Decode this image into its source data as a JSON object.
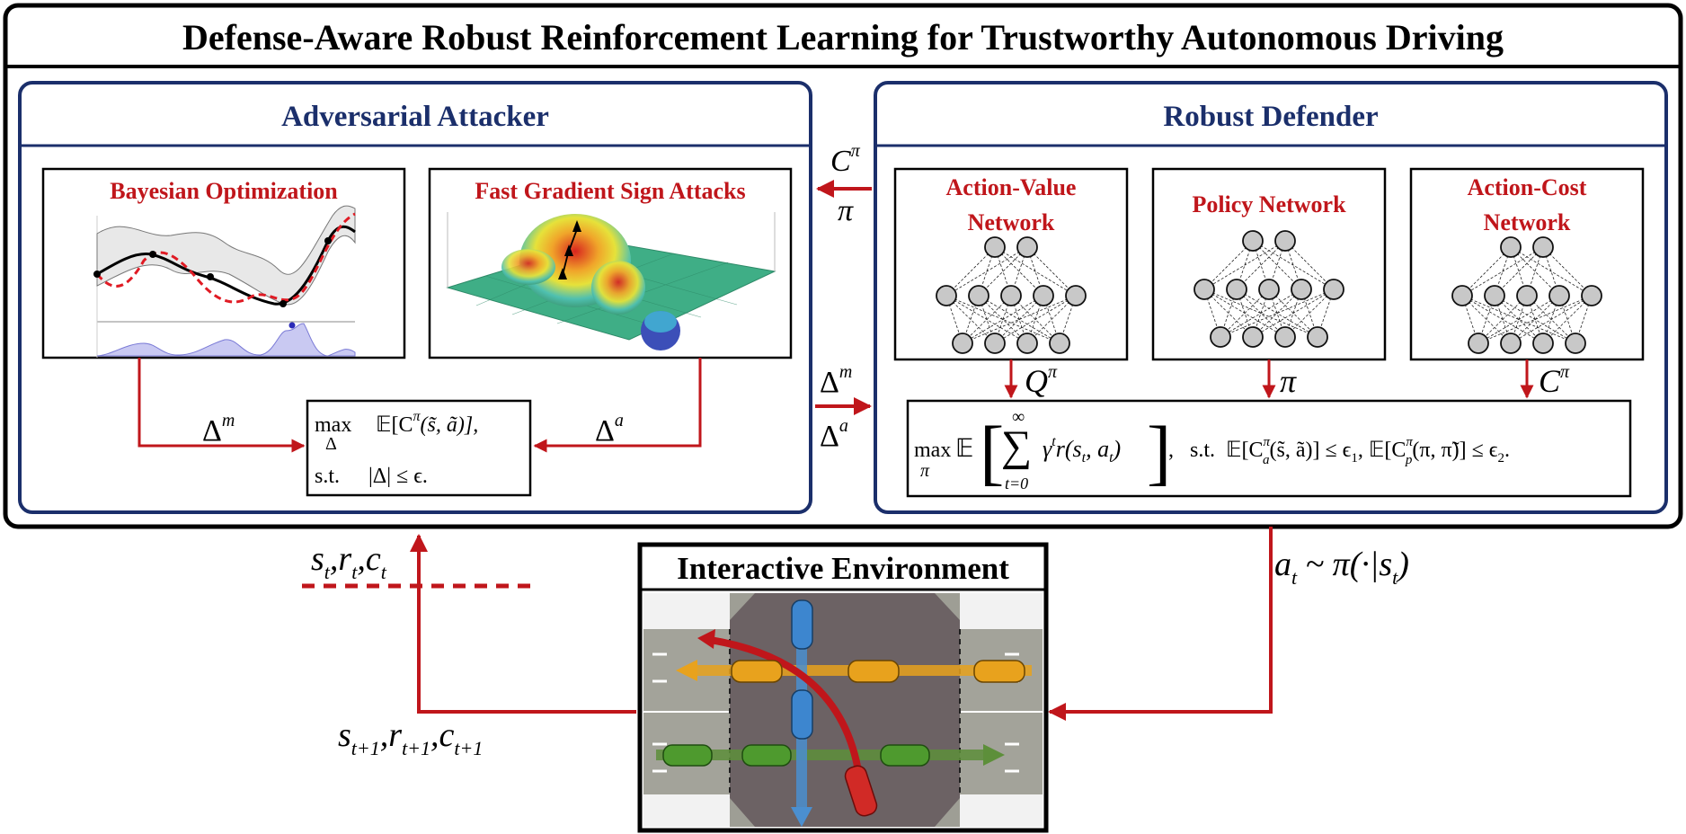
{
  "title": "Defense-Aware Robust Reinforcement Learning for Trustworthy Autonomous Driving",
  "attacker": {
    "title": "Adversarial Attacker",
    "bayes_title": "Bayesian Optimization",
    "fgsa_title": "Fast Gradient Sign Attacks",
    "delta_m": "Δ",
    "delta_m_sup": "m",
    "delta_a": "Δ",
    "delta_a_sup": "a",
    "objective_line1_op": "max",
    "objective_line1_sub": "Δ",
    "objective_line1_expr": "𝔼[C",
    "objective_line1_sup": "π",
    "objective_line1_rest": "(s̃, ã)],",
    "objective_line2_st": "s.t.",
    "objective_line2_expr": "|Δ| ≤ ϵ."
  },
  "defender": {
    "title": "Robust Defender",
    "net1_line1": "Action-Value",
    "net1_line2": "Network",
    "net2": "Policy Network",
    "net3_line1": "Action-Cost",
    "net3_line2": "Network",
    "out1": "Q",
    "out1_sup": "π",
    "out2": "π",
    "out3": "C",
    "out3_sup": "π",
    "objective_max": "max",
    "objective_sub": "π",
    "objective_E": "𝔼",
    "objective_sum_top": "∞",
    "objective_sum_bottom": "t=0",
    "objective_sum_body": "γ",
    "objective_sum_body_sup": "t",
    "objective_reward": "r(s",
    "objective_reward_sub": "t",
    "objective_reward_mid": ", a",
    "objective_reward_sub2": "t",
    "objective_reward_end": ")",
    "constraint": ",   s.t.  𝔼[C",
    "constraint_sup1": "π",
    "constraint_sub1": "a",
    "constraint_mid": "(s̃, ã)] ≤ ϵ",
    "constraint_sub_e1": "1",
    "constraint_mid2": ", 𝔼[C",
    "constraint_sup2": "π",
    "constraint_sub2": "p",
    "constraint_end": "(π, π̃)] ≤ ϵ",
    "constraint_sub_e2": "2",
    "constraint_dot": "."
  },
  "middle_arrows": {
    "top_label_C": "C",
    "top_label_C_sup": "π",
    "top_label_pi": "π",
    "bottom_label_dm": "Δ",
    "bottom_label_dm_sup": "m",
    "bottom_label_da": "Δ",
    "bottom_label_da_sup": "a"
  },
  "environment": {
    "title": "Interactive Environment"
  },
  "signals": {
    "state_s": "s",
    "state_s_sub": "t",
    "state_r": "r",
    "state_r_sub": "t",
    "state_c": "c",
    "state_c_sub": "t",
    "next_s": "s",
    "next_s_sub": "t+1",
    "next_r": "r",
    "next_r_sub": "t+1",
    "next_c": "c",
    "next_c_sub": "t+1",
    "action_a": "a",
    "action_a_sub": "t",
    "action_rest": " ~ π(·|s",
    "action_rest_sub": "t",
    "action_close": ")"
  },
  "colors": {
    "navy": "#1b2f6b",
    "red": "#c0161b",
    "black": "#000000"
  }
}
